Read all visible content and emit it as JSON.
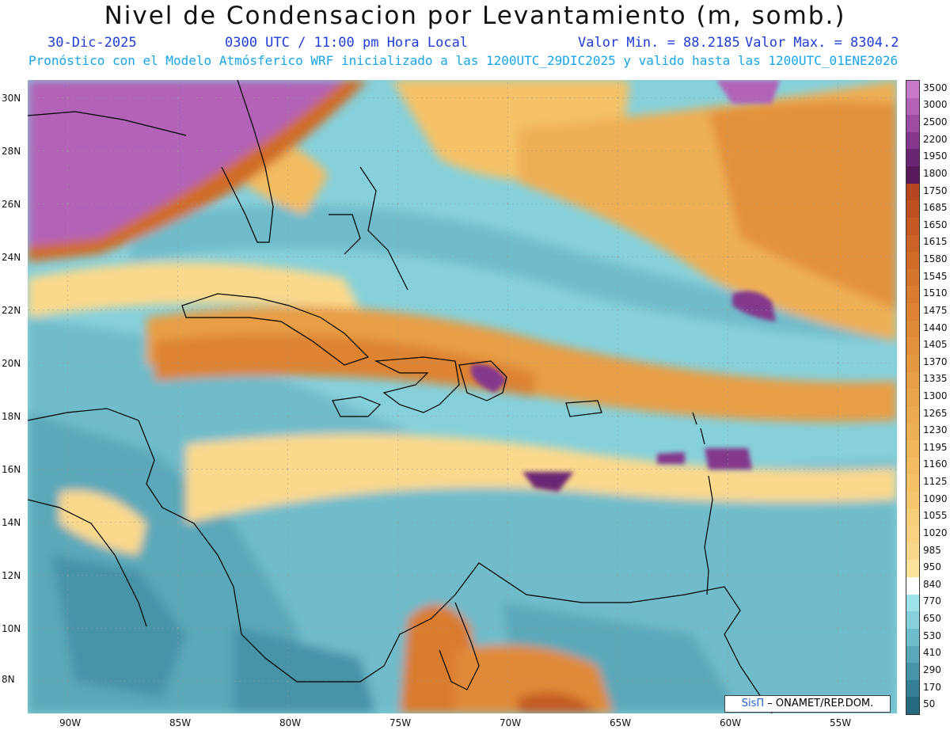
{
  "header": {
    "title": "Nivel de Condensacion por Levantamiento (m, somb.)",
    "date": "30-Dic-2025",
    "time": "0300 UTC / 11:00 pm Hora Local",
    "valor_min": "Valor Min. = 88.2185",
    "valor_max": "Valor Max. = 8304.2",
    "info": "Pronóstico con el Modelo Atmósferico WRF inicializado a las 1200UTC_29DIC2025 y valido hasta las  1200UTC_01ENE2026"
  },
  "axes": {
    "lon_labels": [
      "90W",
      "85W",
      "80W",
      "75W",
      "70W",
      "65W",
      "60W",
      "55W"
    ],
    "lat_labels": [
      "30N",
      "28N",
      "26N",
      "24N",
      "22N",
      "20N",
      "18N",
      "16N",
      "14N",
      "12N",
      "10N",
      "8N"
    ]
  },
  "legend": {
    "levels": [
      "3500",
      "3000",
      "2500",
      "2200",
      "1950",
      "1800",
      "1750",
      "1685",
      "1650",
      "1615",
      "1580",
      "1545",
      "1510",
      "1475",
      "1440",
      "1405",
      "1370",
      "1335",
      "1300",
      "1265",
      "1230",
      "1195",
      "1160",
      "1125",
      "1090",
      "1055",
      "1020",
      "985",
      "950",
      "840",
      "770",
      "650",
      "530",
      "410",
      "290",
      "170",
      "50"
    ],
    "colors": [
      "#c77ac7",
      "#b262b7",
      "#9c4ca2",
      "#84378c",
      "#6b2673",
      "#57195a",
      "#b5461f",
      "#bd4f20",
      "#c45a22",
      "#ca6325",
      "#d06c28",
      "#d5742b",
      "#d97c2f",
      "#dd8333",
      "#e08a37",
      "#e3913b",
      "#e6983f",
      "#e89e44",
      "#eaa449",
      "#edaa4e",
      "#efb054",
      "#f1b65a",
      "#f3bc61",
      "#f5c268",
      "#f6c76f",
      "#f8cd78",
      "#f9d281",
      "#fbd98c",
      "#fce29a",
      "#ffffff",
      "#9ee3ea",
      "#86d0db",
      "#6fbccb",
      "#5aa8ba",
      "#4793a8",
      "#357f96",
      "#26697e"
    ]
  },
  "credit": {
    "sis": "SisΠ",
    "text": "– ONAMET/REP.DOM."
  },
  "colors": {
    "ocean_low": "#6fc4d2",
    "ocean_mid": "#8fd6e0",
    "band_yellow": "#f7dd8e",
    "band_orange": "#e8973e",
    "band_dark": "#c4652a",
    "purple": "#9a4aa6",
    "coast": "#000000"
  }
}
